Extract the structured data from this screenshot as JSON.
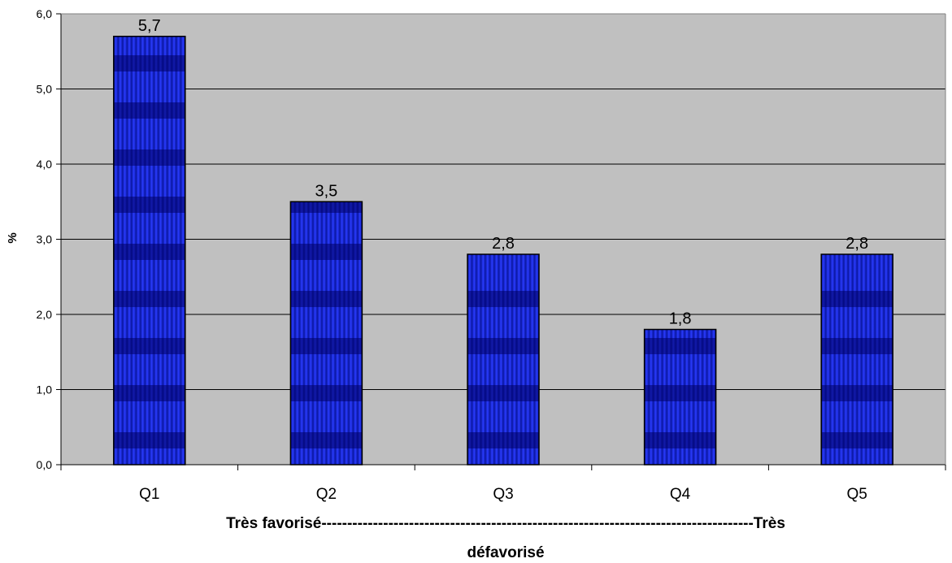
{
  "chart_data": {
    "type": "bar",
    "categories": [
      "Q1",
      "Q2",
      "Q3",
      "Q4",
      "Q5"
    ],
    "values": [
      5.7,
      3.5,
      2.8,
      1.8,
      2.8
    ],
    "value_labels": [
      "5,7",
      "3,5",
      "2,8",
      "1,8",
      "2,8"
    ],
    "ylim": [
      0,
      6
    ],
    "yticks": [
      0,
      1,
      2,
      3,
      4,
      5,
      6
    ],
    "ytick_labels": [
      "0,0",
      "1,0",
      "2,0",
      "3,0",
      "4,0",
      "5,0",
      "6,0"
    ],
    "ylabel": "%",
    "xlabel_lines": [
      "Très favorisé------------------------------------------------------------------------------------Très",
      "défavorisé"
    ],
    "grid": true,
    "legend": "none",
    "colors": {
      "plot_background": "#c0c0c0",
      "bar_dark": "#000066",
      "bar_mid": "#0a14b4",
      "bar_light": "#2a3cff",
      "gridline": "#000000"
    }
  }
}
